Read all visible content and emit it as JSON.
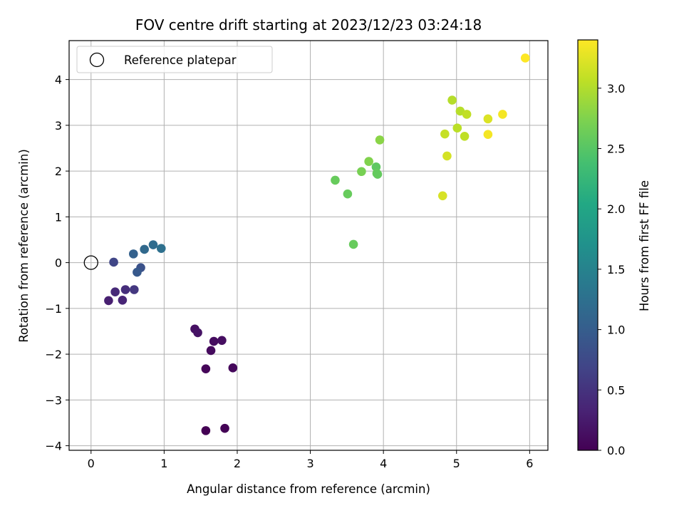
{
  "chart_data": {
    "type": "scatter",
    "title": "FOV centre drift starting at 2023/12/23 03:24:18",
    "xlabel": "Angular distance from reference (arcmin)",
    "ylabel": "Rotation from reference (arcmin)",
    "xlim": [
      -0.3,
      6.25
    ],
    "ylim": [
      -4.1,
      4.85
    ],
    "xticks": [
      0,
      1,
      2,
      3,
      4,
      5,
      6
    ],
    "xtick_labels": [
      "0",
      "1",
      "2",
      "3",
      "4",
      "5",
      "6"
    ],
    "yticks": [
      -4,
      -3,
      -2,
      -1,
      0,
      1,
      2,
      3,
      4
    ],
    "ytick_labels": [
      "−4",
      "−3",
      "−2",
      "−1",
      "0",
      "1",
      "2",
      "3",
      "4"
    ],
    "grid": true,
    "legend": {
      "location": "top-left",
      "entries": [
        "Reference platepar"
      ]
    },
    "reference_point": {
      "name": "Reference platepar",
      "x": 0,
      "y": 0,
      "marker": "open-circle"
    },
    "colorbar": {
      "label": "Hours from first FF file",
      "colormap": "viridis",
      "range": [
        0,
        3.4
      ],
      "ticks": [
        0,
        0.5,
        1.0,
        1.5,
        2.0,
        2.5,
        3.0
      ],
      "tick_labels": [
        "0.0",
        "0.5",
        "1.0",
        "1.5",
        "2.0",
        "2.5",
        "3.0"
      ]
    },
    "points": [
      {
        "x": 1.57,
        "y": -3.67,
        "c": 0.0
      },
      {
        "x": 1.83,
        "y": -3.62,
        "c": 0.02
      },
      {
        "x": 1.57,
        "y": -2.32,
        "c": 0.05
      },
      {
        "x": 1.94,
        "y": -2.3,
        "c": 0.07
      },
      {
        "x": 1.64,
        "y": -1.92,
        "c": 0.09
      },
      {
        "x": 1.68,
        "y": -1.72,
        "c": 0.11
      },
      {
        "x": 1.79,
        "y": -1.7,
        "c": 0.13
      },
      {
        "x": 1.42,
        "y": -1.45,
        "c": 0.15
      },
      {
        "x": 1.46,
        "y": -1.53,
        "c": 0.17
      },
      {
        "x": 0.24,
        "y": -0.83,
        "c": 0.3
      },
      {
        "x": 0.43,
        "y": -0.82,
        "c": 0.35
      },
      {
        "x": 0.33,
        "y": -0.64,
        "c": 0.4
      },
      {
        "x": 0.47,
        "y": -0.59,
        "c": 0.45
      },
      {
        "x": 0.59,
        "y": -0.59,
        "c": 0.55
      },
      {
        "x": 0.31,
        "y": 0.01,
        "c": 0.7
      },
      {
        "x": 0.68,
        "y": -0.11,
        "c": 0.85
      },
      {
        "x": 0.63,
        "y": -0.21,
        "c": 0.95
      },
      {
        "x": 0.58,
        "y": 0.19,
        "c": 1.05
      },
      {
        "x": 0.73,
        "y": 0.29,
        "c": 1.15
      },
      {
        "x": 0.85,
        "y": 0.39,
        "c": 1.2
      },
      {
        "x": 0.96,
        "y": 0.31,
        "c": 1.25
      },
      {
        "x": 3.34,
        "y": 1.8,
        "c": 2.6
      },
      {
        "x": 3.51,
        "y": 1.5,
        "c": 2.6
      },
      {
        "x": 3.59,
        "y": 0.4,
        "c": 2.6
      },
      {
        "x": 3.7,
        "y": 1.99,
        "c": 2.7
      },
      {
        "x": 3.8,
        "y": 2.21,
        "c": 2.75
      },
      {
        "x": 3.9,
        "y": 2.09,
        "c": 2.55
      },
      {
        "x": 3.91,
        "y": 1.95,
        "c": 2.6
      },
      {
        "x": 3.92,
        "y": 1.93,
        "c": 2.58
      },
      {
        "x": 3.95,
        "y": 2.68,
        "c": 2.8
      },
      {
        "x": 4.81,
        "y": 1.46,
        "c": 3.2
      },
      {
        "x": 4.84,
        "y": 2.81,
        "c": 3.1
      },
      {
        "x": 4.87,
        "y": 2.33,
        "c": 3.18
      },
      {
        "x": 4.94,
        "y": 3.55,
        "c": 3.02
      },
      {
        "x": 5.01,
        "y": 2.94,
        "c": 3.05
      },
      {
        "x": 5.05,
        "y": 3.31,
        "c": 3.03
      },
      {
        "x": 5.11,
        "y": 2.76,
        "c": 3.07
      },
      {
        "x": 5.14,
        "y": 3.24,
        "c": 3.08
      },
      {
        "x": 5.43,
        "y": 3.14,
        "c": 3.22
      },
      {
        "x": 5.43,
        "y": 2.8,
        "c": 3.35
      },
      {
        "x": 5.63,
        "y": 3.24,
        "c": 3.35
      },
      {
        "x": 5.94,
        "y": 4.47,
        "c": 3.4
      }
    ]
  }
}
